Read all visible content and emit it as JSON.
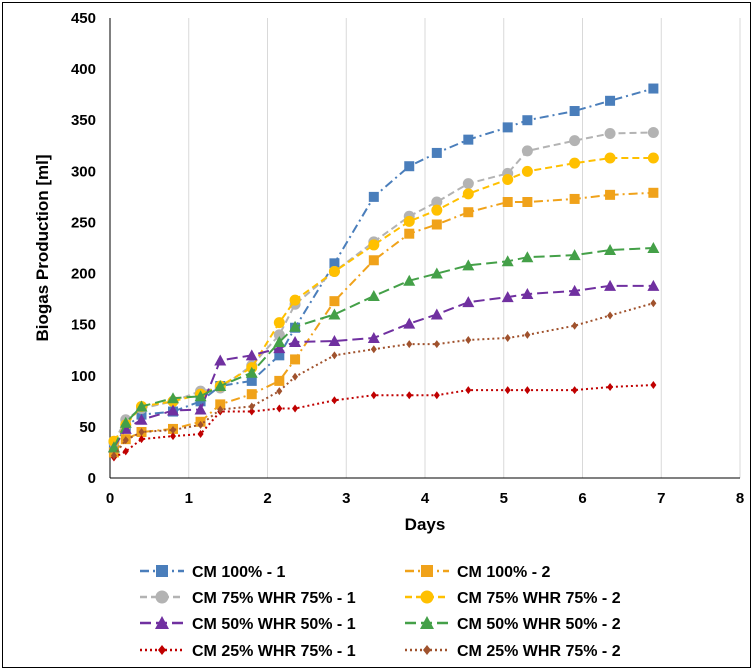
{
  "chart_data": {
    "type": "line",
    "title": "",
    "xlabel": "Days",
    "ylabel": "Biogas Production [ml]",
    "xlim": [
      0,
      8
    ],
    "ylim": [
      0,
      450
    ],
    "xticks": [
      0,
      1,
      2,
      3,
      4,
      5,
      6,
      7,
      8
    ],
    "yticks": [
      0,
      50,
      100,
      150,
      200,
      250,
      300,
      350,
      400,
      450
    ],
    "grid": "vertical",
    "legend_position": "bottom",
    "series": [
      {
        "name": "CM 100% - 1",
        "color": "#4a7ebb",
        "marker": "square",
        "dash": "dashdot",
        "x": [
          0.05,
          0.2,
          0.4,
          0.8,
          1.15,
          1.4,
          1.8,
          2.15,
          2.35,
          2.85,
          3.35,
          3.8,
          4.15,
          4.55,
          5.05,
          5.3,
          5.9,
          6.35,
          6.9
        ],
        "y": [
          30,
          50,
          62,
          65,
          75,
          90,
          95,
          120,
          147,
          210,
          275,
          305,
          318,
          331,
          343,
          350,
          359,
          369,
          381
        ]
      },
      {
        "name": "CM 100% - 2",
        "color": "#f0a21a",
        "marker": "square",
        "dash": "dashdot",
        "x": [
          0.05,
          0.2,
          0.4,
          0.8,
          1.15,
          1.4,
          1.8,
          2.15,
          2.35,
          2.85,
          3.35,
          3.8,
          4.15,
          4.55,
          5.05,
          5.3,
          5.9,
          6.35,
          6.9
        ],
        "y": [
          25,
          38,
          45,
          48,
          55,
          72,
          82,
          95,
          116,
          173,
          213,
          239,
          248,
          260,
          270,
          270,
          273,
          277,
          279
        ]
      },
      {
        "name": "CM 75% WHR 75% - 1",
        "color": "#b3b3b3",
        "marker": "circle",
        "dash": "dashed",
        "x": [
          0.05,
          0.2,
          0.4,
          0.8,
          1.15,
          1.4,
          1.8,
          2.15,
          2.35,
          2.85,
          3.35,
          3.8,
          4.15,
          4.55,
          5.05,
          5.3,
          5.9,
          6.35,
          6.9
        ],
        "y": [
          35,
          57,
          68,
          75,
          85,
          88,
          110,
          140,
          170,
          202,
          231,
          256,
          270,
          288,
          298,
          320,
          330,
          337,
          338
        ]
      },
      {
        "name": "CM 75% WHR 75% - 2",
        "color": "#ffc000",
        "marker": "circle",
        "dash": "dashed",
        "x": [
          0.05,
          0.2,
          0.4,
          0.8,
          1.15,
          1.4,
          1.8,
          2.15,
          2.35,
          2.85,
          3.35,
          3.8,
          4.15,
          4.55,
          5.05,
          5.3,
          5.9,
          6.35,
          6.9
        ],
        "y": [
          36,
          52,
          70,
          75,
          82,
          90,
          108,
          152,
          174,
          202,
          228,
          251,
          262,
          278,
          292,
          300,
          308,
          313,
          313
        ]
      },
      {
        "name": "CM 50% WHR 50% - 1",
        "color": "#7030a0",
        "marker": "triangle",
        "dash": "longdash",
        "x": [
          0.05,
          0.2,
          0.4,
          0.8,
          1.15,
          1.4,
          1.8,
          2.15,
          2.35,
          2.85,
          3.35,
          3.8,
          4.15,
          4.55,
          5.05,
          5.3,
          5.9,
          6.35,
          6.9
        ],
        "y": [
          30,
          48,
          57,
          66,
          67,
          115,
          120,
          127,
          133,
          134,
          137,
          151,
          160,
          172,
          177,
          180,
          183,
          188,
          188
        ]
      },
      {
        "name": "CM 50% WHR 50% - 2",
        "color": "#44a048",
        "marker": "triangle",
        "dash": "longdash",
        "x": [
          0.05,
          0.2,
          0.4,
          0.8,
          1.15,
          1.4,
          1.8,
          2.15,
          2.35,
          2.85,
          3.35,
          3.8,
          4.15,
          4.55,
          5.05,
          5.3,
          5.9,
          6.35,
          6.9
        ],
        "y": [
          30,
          54,
          70,
          78,
          80,
          90,
          103,
          133,
          148,
          160,
          178,
          193,
          200,
          208,
          212,
          216,
          218,
          223,
          225
        ]
      },
      {
        "name": "CM 25% WHR 75% - 1",
        "color": "#c00000",
        "marker": "diamond",
        "dash": "dotted",
        "x": [
          0.05,
          0.2,
          0.4,
          0.8,
          1.15,
          1.4,
          1.8,
          2.15,
          2.35,
          2.85,
          3.35,
          3.8,
          4.15,
          4.55,
          5.05,
          5.3,
          5.9,
          6.35,
          6.9
        ],
        "y": [
          20,
          26,
          38,
          41,
          43,
          65,
          65,
          68,
          68,
          76,
          81,
          81,
          81,
          86,
          86,
          86,
          86,
          89,
          91
        ]
      },
      {
        "name": "CM 25% WHR 75% - 2",
        "color": "#a0522d",
        "marker": "diamond",
        "dash": "dotted",
        "x": [
          0.05,
          0.2,
          0.4,
          0.8,
          1.15,
          1.4,
          1.8,
          2.15,
          2.35,
          2.85,
          3.35,
          3.8,
          4.15,
          4.55,
          5.05,
          5.3,
          5.9,
          6.35,
          6.9
        ],
        "y": [
          22,
          37,
          45,
          47,
          52,
          67,
          70,
          85,
          99,
          120,
          126,
          131,
          131,
          135,
          137,
          140,
          149,
          159,
          171
        ]
      }
    ]
  }
}
